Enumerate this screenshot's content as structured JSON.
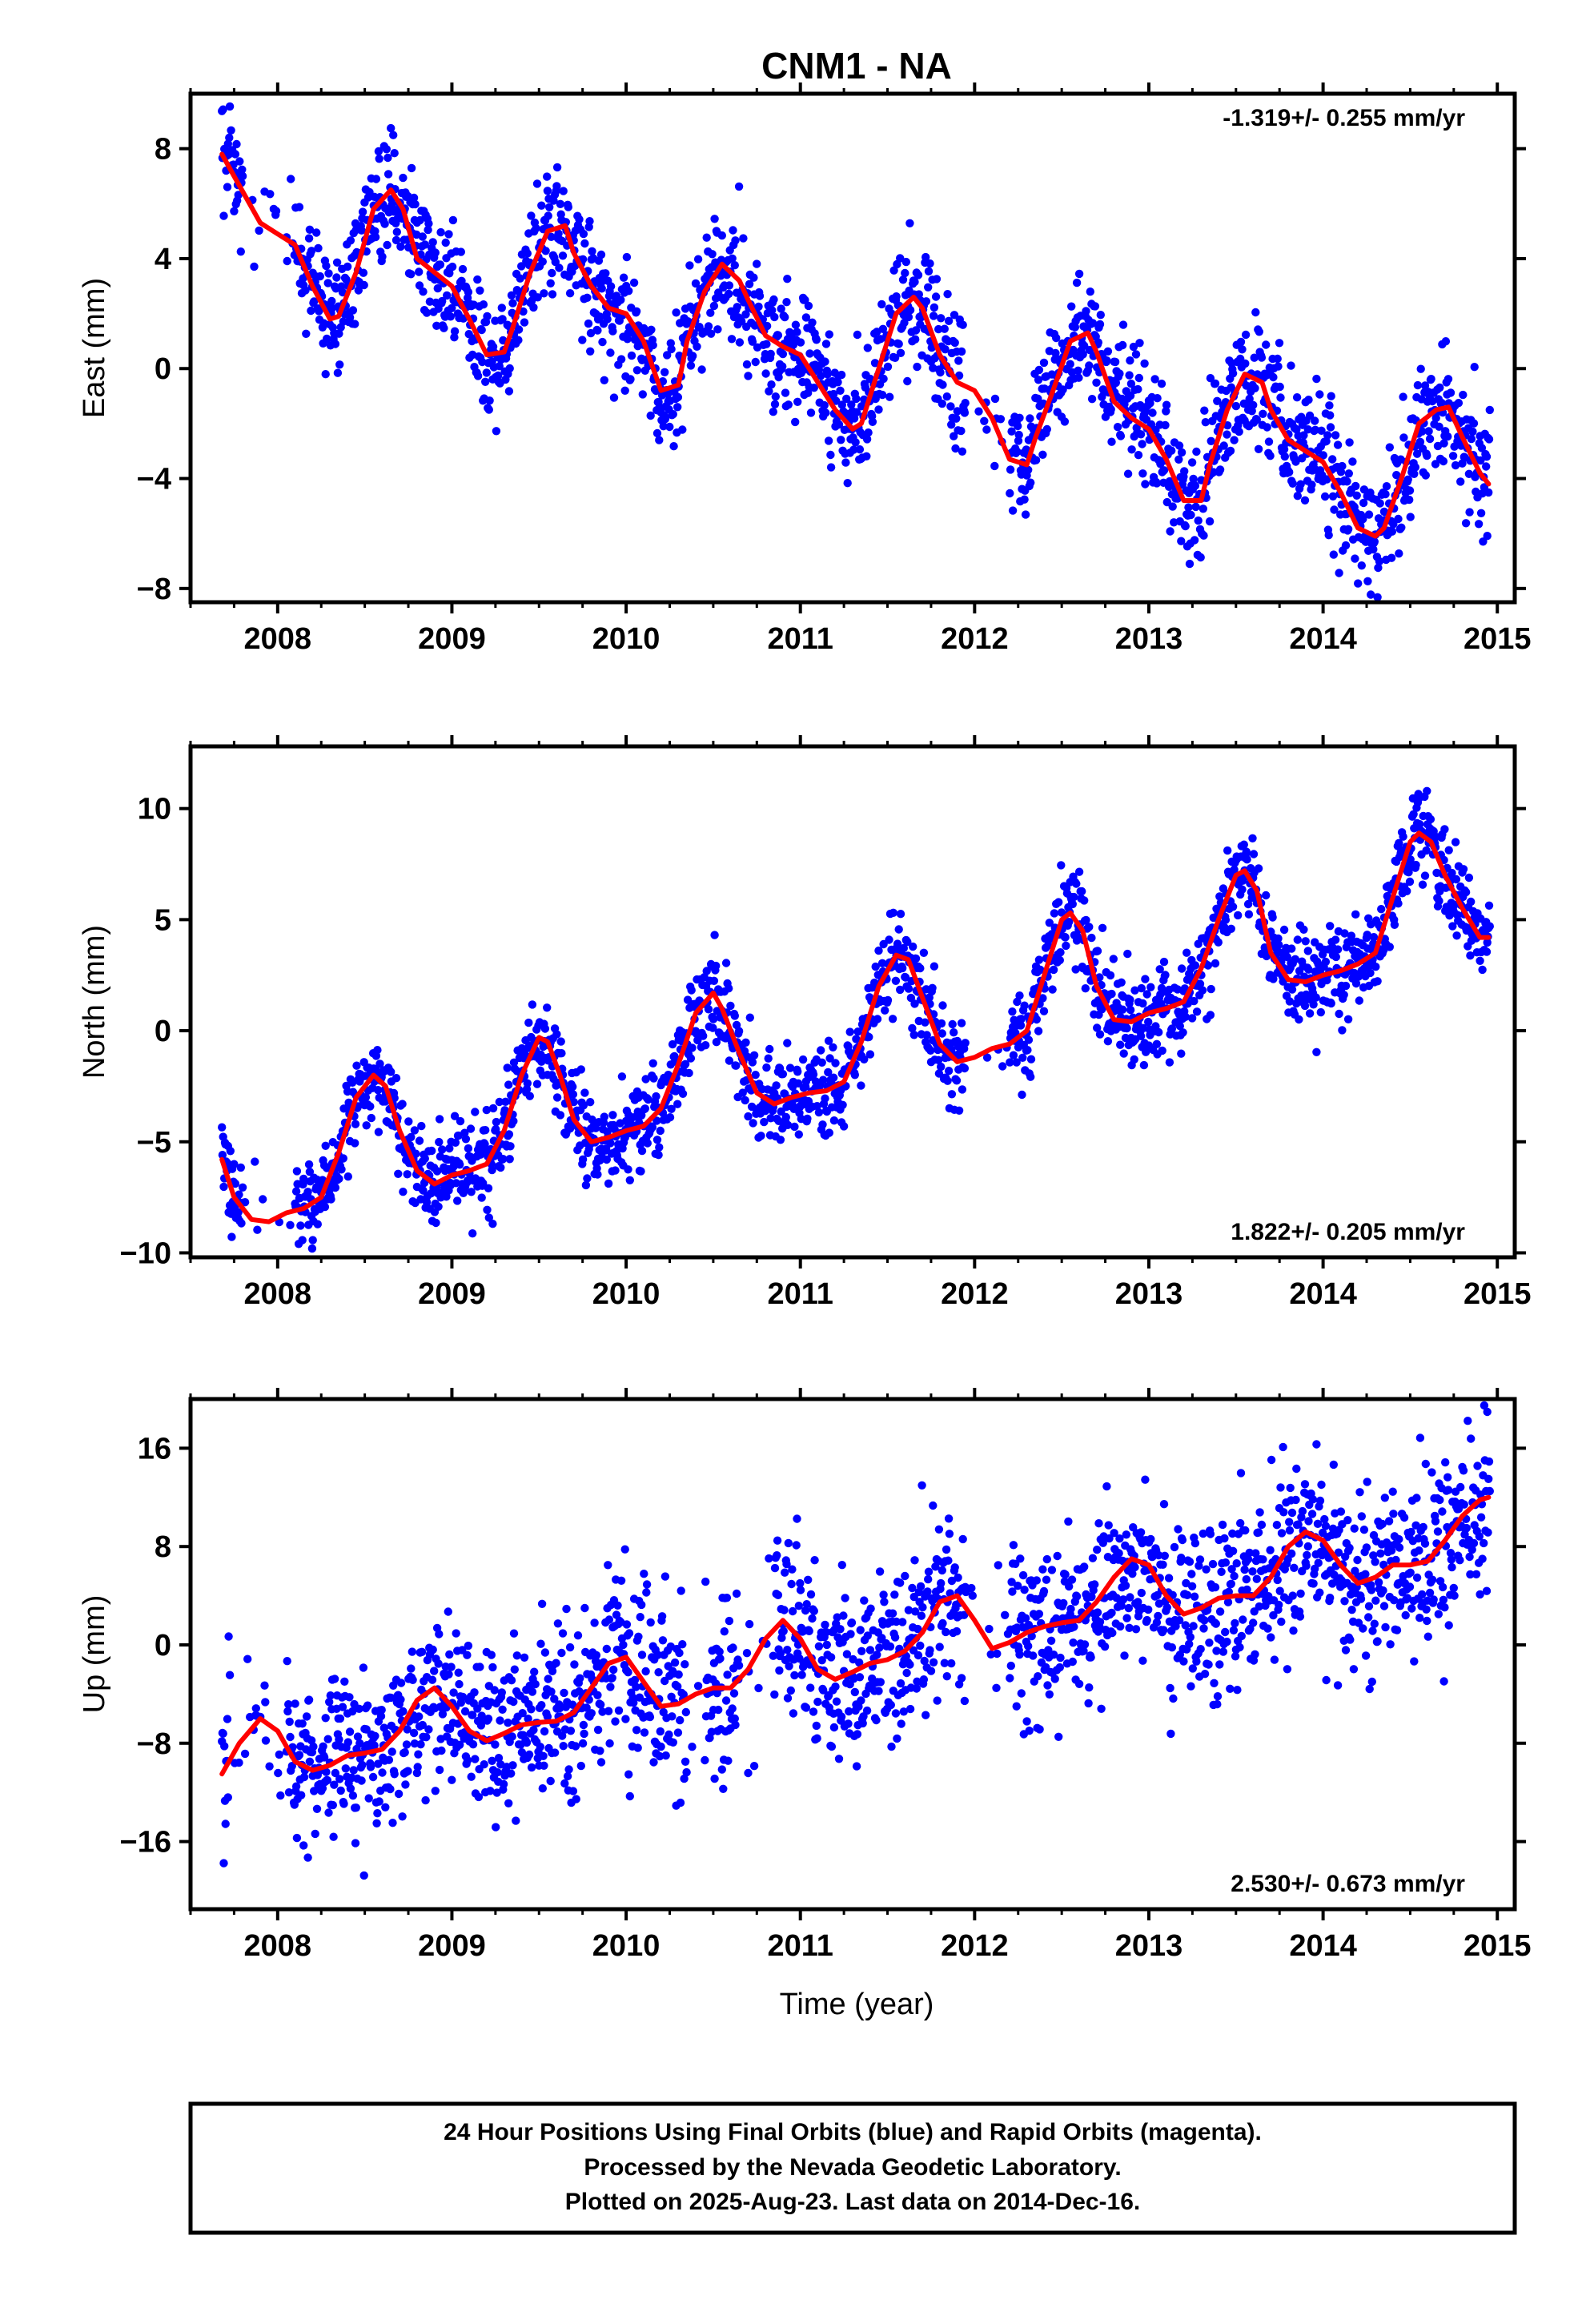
{
  "title": "CNM1 - NA",
  "xlabel": "Time (year)",
  "footer": {
    "line1": "24 Hour Positions Using Final Orbits (blue) and Rapid Orbits (magenta).",
    "line2": "Processed by the Nevada Geodetic Laboratory.",
    "line3": "Plotted on 2025-Aug-23. Last data on 2014-Dec-16."
  },
  "colors": {
    "points": "#0000ff",
    "model": "#ff0000",
    "axes": "#000000"
  },
  "chart_data": [
    {
      "type": "scatter",
      "ylabel": "East (mm)",
      "rate_label": "-1.319+/- 0.255 mm/yr",
      "rate_position": "top-right",
      "xlim": [
        2007.5,
        2015.1
      ],
      "ylim": [
        -8.5,
        10
      ],
      "x_ticks": [
        2008,
        2009,
        2010,
        2011,
        2012,
        2013,
        2014,
        2015
      ],
      "x_tick_labels": [
        "2008",
        "2009",
        "2010",
        "2011",
        "2012",
        "2013",
        "2014",
        "2015"
      ],
      "y_ticks": [
        -8,
        -4,
        0,
        4,
        8
      ],
      "y_tick_labels": [
        "−8",
        "−4",
        "0",
        "4",
        "8"
      ],
      "series": [
        {
          "values_note": "",
          "x": [
            2007.68,
            2007.75,
            2007.9,
            2008.0,
            2008.1,
            2008.2,
            2008.3,
            2008.35,
            2008.45,
            2008.55,
            2008.65,
            2008.72,
            2008.8,
            2008.9,
            2009.0,
            2009.1,
            2009.2,
            2009.3,
            2009.35,
            2009.45,
            2009.55,
            2009.65,
            2009.7,
            2009.8,
            2009.9,
            2010.0,
            2010.1,
            2010.2,
            2010.3,
            2010.35,
            2010.45,
            2010.55,
            2010.65,
            2010.7,
            2010.8,
            2010.9,
            2011.0,
            2011.1,
            2011.2,
            2011.3,
            2011.35,
            2011.45,
            2011.55,
            2011.65,
            2011.7,
            2011.8,
            2011.9,
            2012.0,
            2012.1,
            2012.2,
            2012.3,
            2012.35,
            2012.45,
            2012.55,
            2012.65,
            2012.7,
            2012.8,
            2012.9,
            2013.0,
            2013.1,
            2013.2,
            2013.3,
            2013.35,
            2013.45,
            2013.55,
            2013.65,
            2013.7,
            2013.8,
            2013.9,
            2014.0,
            2014.1,
            2014.2,
            2014.3,
            2014.35,
            2014.45,
            2014.55,
            2014.65,
            2014.72,
            2014.8,
            2014.9,
            2014.95
          ],
          "y": [
            7.8,
            7.0,
            5.3,
            4.9,
            4.5,
            3.0,
            1.8,
            1.9,
            3.5,
            5.8,
            6.5,
            5.8,
            4.0,
            3.5,
            3.0,
            1.8,
            0.5,
            0.6,
            1.5,
            3.5,
            5.0,
            5.2,
            4.2,
            3.0,
            2.2,
            2.0,
            1.0,
            -0.8,
            -0.6,
            1.0,
            2.8,
            3.8,
            3.2,
            2.5,
            1.2,
            0.8,
            0.5,
            -0.5,
            -1.5,
            -2.2,
            -2.0,
            0.0,
            2.0,
            2.6,
            2.2,
            0.5,
            -0.5,
            -0.8,
            -1.8,
            -3.3,
            -3.5,
            -2.5,
            -0.8,
            1.0,
            1.3,
            0.6,
            -1.2,
            -1.8,
            -2.2,
            -3.3,
            -4.8,
            -4.8,
            -3.5,
            -1.5,
            -0.2,
            -0.5,
            -1.5,
            -2.6,
            -3.0,
            -3.4,
            -4.5,
            -5.8,
            -6.1,
            -5.8,
            -4.0,
            -2.0,
            -1.5,
            -1.4,
            -2.5,
            -3.8,
            -4.2
          ],
          "kind": "model"
        }
      ]
    },
    {
      "type": "scatter",
      "ylabel": "North (mm)",
      "rate_label": "1.822+/- 0.205 mm/yr",
      "rate_position": "bottom-right",
      "xlim": [
        2007.5,
        2015.1
      ],
      "ylim": [
        -10.2,
        12.8
      ],
      "x_ticks": [
        2008,
        2009,
        2010,
        2011,
        2012,
        2013,
        2014,
        2015
      ],
      "x_tick_labels": [
        "2008",
        "2009",
        "2010",
        "2011",
        "2012",
        "2013",
        "2014",
        "2015"
      ],
      "y_ticks": [
        -10,
        -5,
        0,
        5,
        10
      ],
      "y_tick_labels": [
        "−10",
        "−5",
        "0",
        "5",
        "10"
      ],
      "series": [
        {
          "x": [
            2007.68,
            2007.75,
            2007.85,
            2007.95,
            2008.05,
            2008.15,
            2008.25,
            2008.35,
            2008.45,
            2008.55,
            2008.62,
            2008.7,
            2008.8,
            2008.9,
            2009.0,
            2009.1,
            2009.2,
            2009.3,
            2009.4,
            2009.5,
            2009.55,
            2009.62,
            2009.7,
            2009.8,
            2009.9,
            2010.0,
            2010.1,
            2010.2,
            2010.3,
            2010.4,
            2010.5,
            2010.55,
            2010.65,
            2010.75,
            2010.85,
            2010.95,
            2011.05,
            2011.15,
            2011.25,
            2011.35,
            2011.45,
            2011.55,
            2011.62,
            2011.7,
            2011.8,
            2011.9,
            2012.0,
            2012.1,
            2012.2,
            2012.3,
            2012.4,
            2012.5,
            2012.55,
            2012.62,
            2012.7,
            2012.8,
            2012.9,
            2013.0,
            2013.1,
            2013.2,
            2013.3,
            2013.4,
            2013.5,
            2013.55,
            2013.62,
            2013.7,
            2013.8,
            2013.9,
            2014.0,
            2014.1,
            2014.2,
            2014.3,
            2014.4,
            2014.5,
            2014.55,
            2014.62,
            2014.7,
            2014.8,
            2014.9,
            2014.95
          ],
          "y": [
            -5.8,
            -7.5,
            -8.5,
            -8.6,
            -8.2,
            -8.0,
            -7.5,
            -5.5,
            -3.0,
            -2.0,
            -2.5,
            -4.5,
            -6.3,
            -6.9,
            -6.5,
            -6.3,
            -6.0,
            -4.5,
            -2.0,
            -0.3,
            -0.5,
            -2.0,
            -4.0,
            -5.0,
            -4.8,
            -4.5,
            -4.3,
            -3.5,
            -1.5,
            0.8,
            1.7,
            1.0,
            -1.0,
            -2.8,
            -3.3,
            -3.0,
            -2.8,
            -2.7,
            -2.3,
            -0.5,
            2.0,
            3.4,
            3.2,
            1.5,
            -0.6,
            -1.4,
            -1.2,
            -0.8,
            -0.6,
            0.0,
            2.5,
            5.0,
            5.3,
            4.5,
            2.0,
            0.5,
            0.4,
            0.8,
            1.0,
            1.3,
            2.8,
            5.0,
            7.0,
            7.2,
            6.3,
            3.5,
            2.3,
            2.2,
            2.5,
            2.7,
            3.0,
            3.5,
            6.0,
            8.5,
            8.9,
            8.5,
            7.0,
            5.5,
            4.2,
            4.2
          ],
          "kind": "model"
        }
      ]
    },
    {
      "type": "scatter",
      "ylabel": "Up (mm)",
      "rate_label": "2.530+/- 0.673 mm/yr",
      "rate_position": "bottom-right",
      "xlim": [
        2007.5,
        2015.1
      ],
      "ylim": [
        -21.5,
        20
      ],
      "x_ticks": [
        2008,
        2009,
        2010,
        2011,
        2012,
        2013,
        2014,
        2015
      ],
      "x_tick_labels": [
        "2008",
        "2009",
        "2010",
        "2011",
        "2012",
        "2013",
        "2014",
        "2015"
      ],
      "y_ticks": [
        -16,
        -8,
        0,
        8,
        16
      ],
      "y_tick_labels": [
        "−16",
        "−8",
        "0",
        "8",
        "16"
      ],
      "series": [
        {
          "x": [
            2007.68,
            2007.78,
            2007.9,
            2008.0,
            2008.1,
            2008.2,
            2008.3,
            2008.4,
            2008.5,
            2008.6,
            2008.7,
            2008.8,
            2008.9,
            2009.0,
            2009.1,
            2009.2,
            2009.3,
            2009.4,
            2009.5,
            2009.6,
            2009.7,
            2009.8,
            2009.9,
            2010.0,
            2010.1,
            2010.2,
            2010.3,
            2010.4,
            2010.5,
            2010.6,
            2010.7,
            2010.8,
            2010.9,
            2011.0,
            2011.1,
            2011.2,
            2011.3,
            2011.4,
            2011.5,
            2011.6,
            2011.7,
            2011.8,
            2011.9,
            2012.0,
            2012.1,
            2012.2,
            2012.3,
            2012.4,
            2012.5,
            2012.6,
            2012.7,
            2012.8,
            2012.9,
            2013.0,
            2013.1,
            2013.2,
            2013.3,
            2013.4,
            2013.5,
            2013.6,
            2013.7,
            2013.8,
            2013.9,
            2014.0,
            2014.1,
            2014.2,
            2014.3,
            2014.4,
            2014.5,
            2014.6,
            2014.7,
            2014.8,
            2014.9,
            2014.95
          ],
          "y": [
            -10.5,
            -8.0,
            -6.0,
            -7.0,
            -9.5,
            -10.2,
            -9.8,
            -9.0,
            -8.8,
            -8.5,
            -7.0,
            -4.5,
            -3.5,
            -5.0,
            -7.0,
            -7.8,
            -7.2,
            -6.5,
            -6.3,
            -6.2,
            -5.5,
            -3.5,
            -1.5,
            -1.0,
            -3.0,
            -5.0,
            -4.8,
            -4.0,
            -3.5,
            -3.5,
            -2.0,
            0.5,
            2.0,
            0.5,
            -2.0,
            -2.8,
            -2.2,
            -1.5,
            -1.2,
            -0.5,
            1.0,
            3.5,
            4.0,
            2.0,
            -0.3,
            0.2,
            1.0,
            1.5,
            1.8,
            2.0,
            3.5,
            5.5,
            7.0,
            6.5,
            4.0,
            2.5,
            3.0,
            3.8,
            4.0,
            4.0,
            5.5,
            8.0,
            9.2,
            8.5,
            6.5,
            5.0,
            5.5,
            6.5,
            6.5,
            6.8,
            8.5,
            10.5,
            11.8,
            12.0
          ],
          "kind": "model"
        }
      ]
    }
  ]
}
